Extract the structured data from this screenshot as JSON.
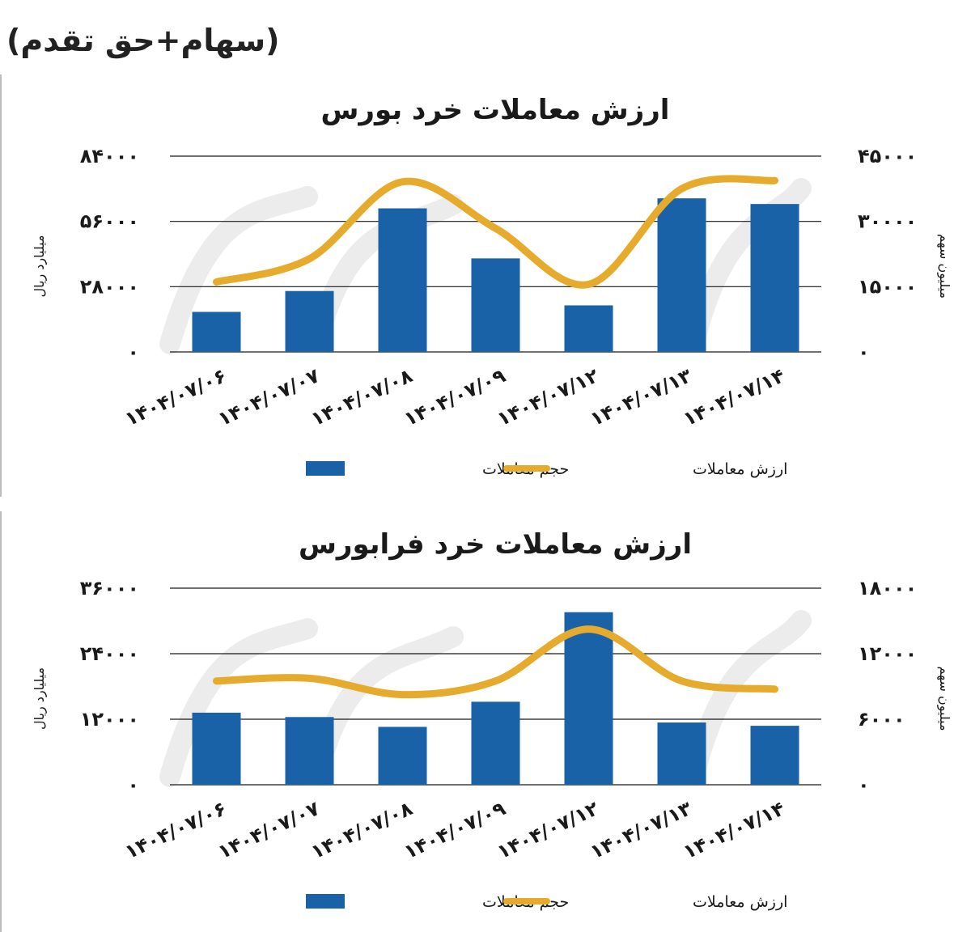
{
  "header": {
    "text": "(سهام+حق تقدم)"
  },
  "colors": {
    "bar": "#1a62a8",
    "line": "#e6ab2c",
    "grid": "#1a1a1a",
    "watermark": "#ececec"
  },
  "chart_data": [
    {
      "type": "bar",
      "title": "ارزش معاملات خرد بورس",
      "categories": [
        "1404/07/06",
        "1404/07/07",
        "1404/07/08",
        "1404/07/09",
        "1404/07/12",
        "1404/07/13",
        "1404/07/14"
      ],
      "category_labels": [
        "۱۴۰۴/۰۷/۰۶",
        "۱۴۰۴/۰۷/۰۷",
        "۱۴۰۴/۰۷/۰۸",
        "۱۴۰۴/۰۷/۰۹",
        "۱۴۰۴/۰۷/۱۲",
        "۱۴۰۴/۰۷/۱۳",
        "۱۴۰۴/۰۷/۱۴"
      ],
      "ylabel": "میلیارد ریال",
      "ylabel_right": "میلیون سهم",
      "ylim": [
        0,
        84000
      ],
      "ylim_right": [
        0,
        45000
      ],
      "yticks": [
        "۰",
        "۲۸۰۰۰",
        "۵۶۰۰۰",
        "۸۴۰۰۰"
      ],
      "yticks_right": [
        "۰",
        "۱۵۰۰۰",
        "۳۰۰۰۰",
        "۴۵۰۰۰"
      ],
      "grid": true,
      "legend_placement": "bottom",
      "series": [
        {
          "name": "حجم معاملات",
          "type": "bar",
          "axis": "right",
          "values": [
            9200,
            14000,
            33000,
            21500,
            10700,
            35300,
            34000
          ]
        },
        {
          "name": "ارزش معاملات",
          "type": "line",
          "axis": "left",
          "values": [
            30000,
            40000,
            73000,
            53000,
            29000,
            70000,
            73500
          ]
        }
      ]
    },
    {
      "type": "bar",
      "title": "ارزش معاملات خرد فرابورس",
      "categories": [
        "1404/07/06",
        "1404/07/07",
        "1404/07/08",
        "1404/07/09",
        "1404/07/12",
        "1404/07/13",
        "1404/07/14"
      ],
      "category_labels": [
        "۱۴۰۴/۰۷/۰۶",
        "۱۴۰۴/۰۷/۰۷",
        "۱۴۰۴/۰۷/۰۸",
        "۱۴۰۴/۰۷/۰۹",
        "۱۴۰۴/۰۷/۱۲",
        "۱۴۰۴/۰۷/۱۳",
        "۱۴۰۴/۰۷/۱۴"
      ],
      "ylabel": "میلیارد ریال",
      "ylabel_right": "میلیون سهم",
      "ylim": [
        0,
        36000
      ],
      "ylim_right": [
        0,
        18000
      ],
      "yticks": [
        "۰",
        "۱۲۰۰۰",
        "۲۴۰۰۰",
        "۳۶۰۰۰"
      ],
      "yticks_right": [
        "۰",
        "۶۰۰۰",
        "۱۲۰۰۰",
        "۱۸۰۰۰"
      ],
      "grid": true,
      "legend_placement": "bottom",
      "series": [
        {
          "name": "حجم معاملات",
          "type": "bar",
          "axis": "right",
          "values": [
            6600,
            6200,
            5300,
            7600,
            15800,
            5700,
            5400
          ]
        },
        {
          "name": "ارزش معاملات",
          "type": "line",
          "axis": "left",
          "values": [
            19000,
            19500,
            16500,
            19000,
            28500,
            19000,
            17500
          ]
        }
      ]
    }
  ]
}
